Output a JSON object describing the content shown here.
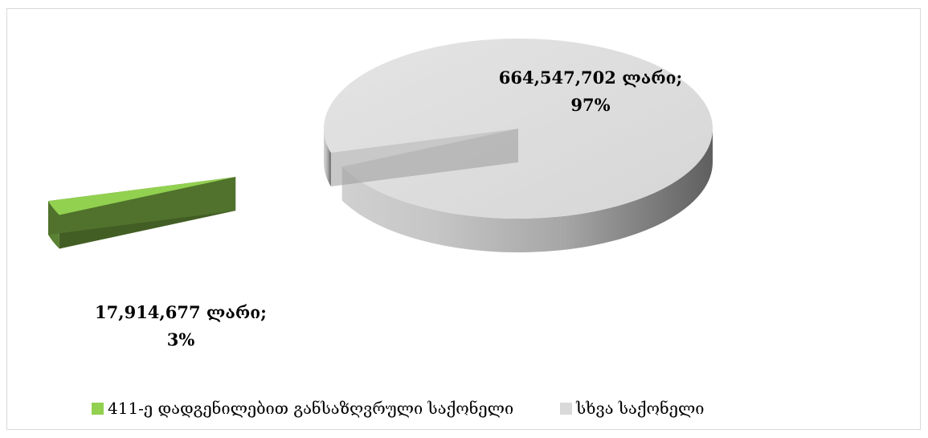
{
  "chart_data": {
    "type": "pie",
    "title": "",
    "slices": [
      {
        "name": "411-ე დადგენილებით განსაზღვრული საქონელი",
        "value": 17914677,
        "percent": 3,
        "label_line1": "17,914,677 ლარი;",
        "label_line2": "3%",
        "color": "#92d050",
        "exploded": true
      },
      {
        "name": "სხვა საქონელი",
        "value": 664547702,
        "percent": 97,
        "label_line1": "664,547,702 ლარი;",
        "label_line2": "97%",
        "color": "#d9d9d9",
        "exploded": false
      }
    ],
    "style": "3d",
    "legend_position": "bottom"
  }
}
